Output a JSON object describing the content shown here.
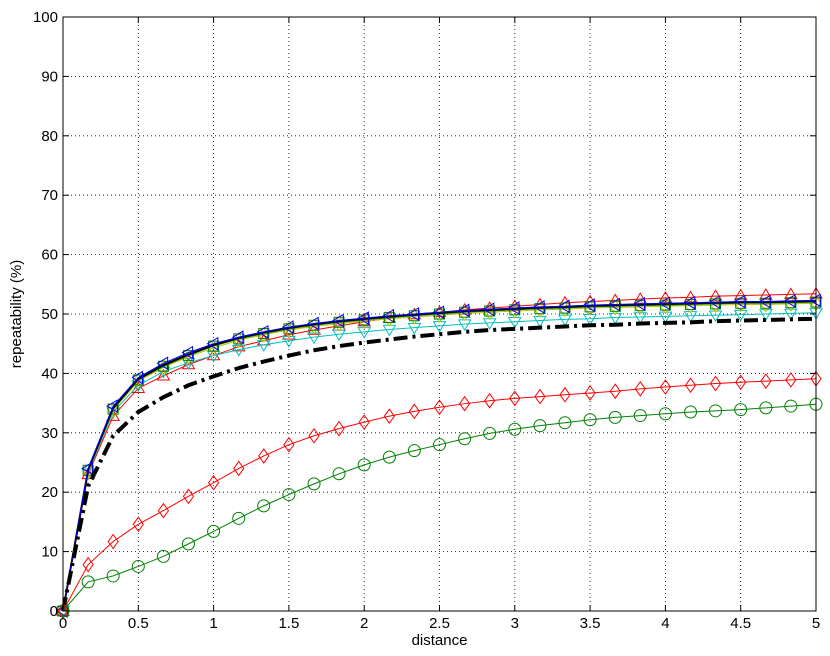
{
  "chart_data": {
    "type": "line",
    "title": "",
    "xlabel": "distance",
    "ylabel": "repeatability (%)",
    "xlim": [
      0,
      5
    ],
    "ylim": [
      0,
      100
    ],
    "xticks": [
      0,
      0.5,
      1,
      1.5,
      2,
      2.5,
      3,
      3.5,
      4,
      4.5,
      5
    ],
    "xtick_labels": [
      "0",
      "0.5",
      "1",
      "1.5",
      "2",
      "2.5",
      "3",
      "3.5",
      "4",
      "4.5",
      "5"
    ],
    "yticks": [
      0,
      10,
      20,
      30,
      40,
      50,
      60,
      70,
      80,
      90,
      100
    ],
    "ytick_labels": [
      "0",
      "10",
      "20",
      "30",
      "40",
      "50",
      "60",
      "70",
      "80",
      "90",
      "100"
    ],
    "grid": true,
    "legend": "none",
    "x": [
      0,
      0.167,
      0.333,
      0.5,
      0.667,
      0.833,
      1.0,
      1.167,
      1.333,
      1.5,
      1.667,
      1.833,
      2.0,
      2.167,
      2.333,
      2.5,
      2.667,
      2.833,
      3.0,
      3.167,
      3.333,
      3.5,
      3.667,
      3.833,
      4.0,
      4.167,
      4.333,
      4.5,
      4.667,
      4.833,
      5.0
    ],
    "series": [
      {
        "color": "#ff0000",
        "marker": "triangle-up",
        "style": "solid",
        "values": [
          0,
          23.0,
          32.8,
          37.5,
          39.6,
          41.5,
          43.0,
          44.5,
          45.5,
          46.5,
          47.3,
          48.0,
          48.7,
          49.3,
          49.9,
          50.3,
          50.7,
          51.0,
          51.3,
          51.6,
          51.9,
          52.1,
          52.3,
          52.5,
          52.7,
          52.8,
          53.0,
          53.1,
          53.2,
          53.3,
          53.4
        ]
      },
      {
        "color": "#00bfbf",
        "marker": "triangle-down",
        "style": "solid",
        "values": [
          0,
          23.2,
          33.5,
          38.0,
          40.3,
          41.8,
          43.0,
          44.0,
          44.8,
          45.5,
          46.1,
          46.6,
          47.0,
          47.4,
          47.7,
          48.0,
          48.3,
          48.5,
          48.7,
          48.9,
          49.1,
          49.2,
          49.4,
          49.5,
          49.6,
          49.7,
          49.8,
          49.9,
          50.0,
          50.1,
          50.2
        ]
      },
      {
        "color": "#bfbf00",
        "marker": "diamond",
        "style": "solid",
        "values": [
          0,
          23.5,
          33.8,
          38.7,
          41.0,
          42.8,
          44.3,
          45.6,
          46.5,
          47.3,
          47.9,
          48.4,
          48.8,
          49.2,
          49.5,
          49.8,
          50.1,
          50.3,
          50.5,
          50.7,
          50.8,
          51.0,
          51.1,
          51.2,
          51.3,
          51.4,
          51.5,
          51.6,
          51.6,
          51.7,
          51.8
        ]
      },
      {
        "color": "#008000",
        "marker": "square",
        "style": "solid",
        "values": [
          0,
          23.7,
          34.0,
          38.9,
          41.2,
          43.0,
          44.6,
          45.8,
          46.7,
          47.5,
          48.1,
          48.6,
          49.0,
          49.4,
          49.7,
          50.0,
          50.3,
          50.5,
          50.7,
          50.9,
          51.0,
          51.2,
          51.3,
          51.4,
          51.5,
          51.6,
          51.7,
          51.8,
          51.8,
          51.9,
          52.0
        ]
      },
      {
        "color": "#000000",
        "marker": "none",
        "style": "solid",
        "values": [
          0,
          23.8,
          34.2,
          39.1,
          41.4,
          43.2,
          44.8,
          46.0,
          46.9,
          47.7,
          48.3,
          48.8,
          49.2,
          49.6,
          49.9,
          50.2,
          50.5,
          50.7,
          50.9,
          51.1,
          51.2,
          51.4,
          51.5,
          51.6,
          51.7,
          51.8,
          51.9,
          52.0,
          52.0,
          52.1,
          52.2
        ]
      },
      {
        "color": "#0000ff",
        "marker": "triangle-left",
        "style": "solid",
        "values": [
          0,
          24.0,
          34.5,
          39.3,
          41.7,
          43.5,
          45.0,
          46.1,
          47.0,
          47.8,
          48.4,
          48.9,
          49.3,
          49.7,
          50.0,
          50.3,
          50.6,
          50.8,
          51.0,
          51.2,
          51.3,
          51.5,
          51.6,
          51.7,
          51.8,
          51.9,
          52.0,
          52.1,
          52.1,
          52.2,
          52.3
        ]
      },
      {
        "color": "#000000",
        "marker": "none",
        "style": "dashdot",
        "values": [
          0,
          21.0,
          29.5,
          33.5,
          36.0,
          38.0,
          39.5,
          40.9,
          42.0,
          43.0,
          43.9,
          44.6,
          45.2,
          45.7,
          46.2,
          46.6,
          47.0,
          47.3,
          47.5,
          47.7,
          47.9,
          48.1,
          48.2,
          48.4,
          48.5,
          48.6,
          48.8,
          48.9,
          49.0,
          49.1,
          49.2
        ]
      },
      {
        "color": "#ff0000",
        "marker": "diamond",
        "style": "solid",
        "values": [
          0,
          7.8,
          11.7,
          14.6,
          16.9,
          19.3,
          21.6,
          24.0,
          26.1,
          28.0,
          29.5,
          30.7,
          31.8,
          32.8,
          33.6,
          34.3,
          34.9,
          35.4,
          35.8,
          36.1,
          36.4,
          36.7,
          37.0,
          37.4,
          37.7,
          38.0,
          38.3,
          38.5,
          38.7,
          38.9,
          39.1
        ]
      },
      {
        "color": "#008000",
        "marker": "circle",
        "style": "solid",
        "values": [
          0,
          4.9,
          5.9,
          7.5,
          9.2,
          11.3,
          13.4,
          15.6,
          17.7,
          19.6,
          21.4,
          23.1,
          24.6,
          25.9,
          27.0,
          28.0,
          29.0,
          29.9,
          30.6,
          31.2,
          31.7,
          32.2,
          32.6,
          32.9,
          33.2,
          33.5,
          33.7,
          33.9,
          34.2,
          34.5,
          34.8
        ]
      }
    ]
  }
}
